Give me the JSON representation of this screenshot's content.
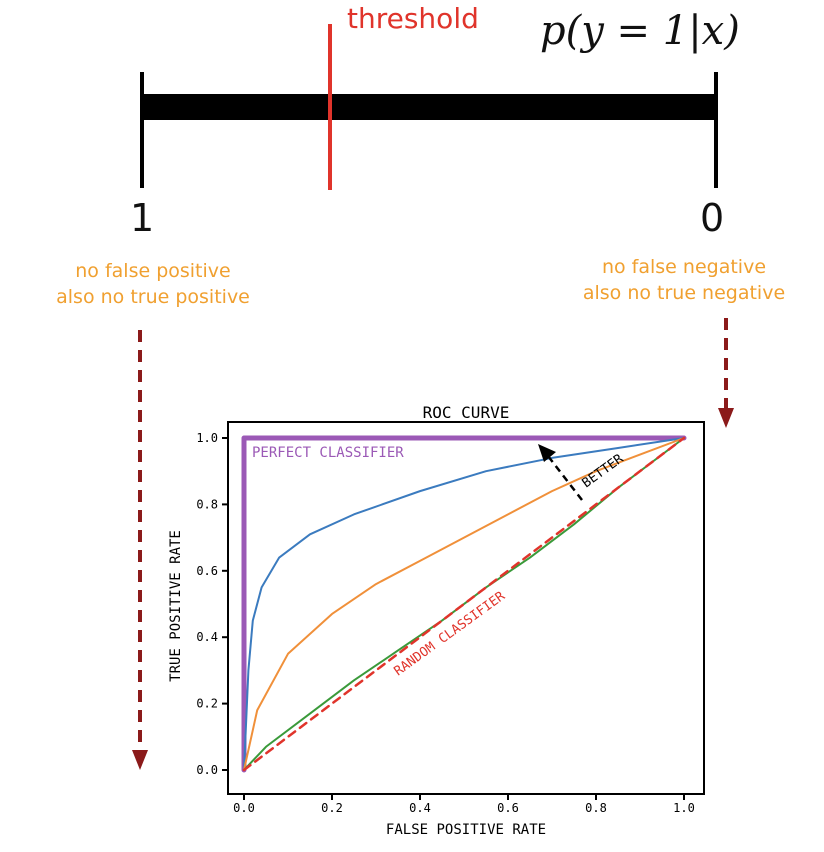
{
  "labels": {
    "threshold": "threshold",
    "probability_expression": "p(y = 1|x)",
    "end_left": "1",
    "end_right": "0"
  },
  "notes": {
    "left_line1": "no false positive",
    "left_line2": "also no true positive",
    "right_line1": "no false negative",
    "right_line2": "also no true negative"
  },
  "roc_plot": {
    "title": "ROC CURVE",
    "xlabel": "FALSE POSITIVE RATE",
    "ylabel": "TRUE POSITIVE RATE",
    "x_ticks": [
      "0.0",
      "0.2",
      "0.4",
      "0.6",
      "0.8",
      "1.0"
    ],
    "y_ticks": [
      "0.0",
      "0.2",
      "0.4",
      "0.6",
      "0.8",
      "1.0"
    ],
    "perfect_label": "PERFECT CLASSIFIER",
    "random_label": "RANDOM CLASSIFIER",
    "better_label": "BETTER"
  },
  "chart_data": {
    "type": "line",
    "title": "ROC CURVE",
    "xlabel": "FALSE POSITIVE RATE",
    "ylabel": "TRUE POSITIVE RATE",
    "xlim": [
      0,
      1
    ],
    "ylim": [
      0,
      1
    ],
    "series": [
      {
        "name": "PERFECT CLASSIFIER",
        "color": "#9b59b6",
        "x": [
          0,
          0,
          1
        ],
        "y": [
          0,
          1,
          1
        ]
      },
      {
        "color": "#3b7bbf",
        "x": [
          0,
          0.01,
          0.02,
          0.04,
          0.08,
          0.15,
          0.25,
          0.4,
          0.55,
          0.7,
          0.85,
          1.0
        ],
        "y": [
          0,
          0.3,
          0.45,
          0.55,
          0.64,
          0.71,
          0.77,
          0.84,
          0.9,
          0.94,
          0.97,
          1.0
        ]
      },
      {
        "color": "#f0903a",
        "x": [
          0,
          0.03,
          0.1,
          0.2,
          0.3,
          0.4,
          0.5,
          0.6,
          0.7,
          0.8,
          0.9,
          1.0
        ],
        "y": [
          0,
          0.18,
          0.35,
          0.47,
          0.56,
          0.63,
          0.7,
          0.77,
          0.84,
          0.9,
          0.95,
          1.0
        ]
      },
      {
        "color": "#3a9a3a",
        "x": [
          0,
          0.05,
          0.15,
          0.25,
          0.35,
          0.45,
          0.55,
          0.65,
          0.75,
          0.85,
          1.0
        ],
        "y": [
          0,
          0.07,
          0.17,
          0.27,
          0.36,
          0.45,
          0.55,
          0.64,
          0.74,
          0.85,
          1.0
        ]
      },
      {
        "name": "RANDOM CLASSIFIER",
        "color": "#e0342b",
        "x": [
          0,
          1
        ],
        "y": [
          0,
          1
        ]
      }
    ]
  },
  "colors": {
    "threshold": "#e0342b",
    "note": "#f0a030",
    "arrow": "#8b1a1a",
    "axis_bar": "#000000"
  }
}
